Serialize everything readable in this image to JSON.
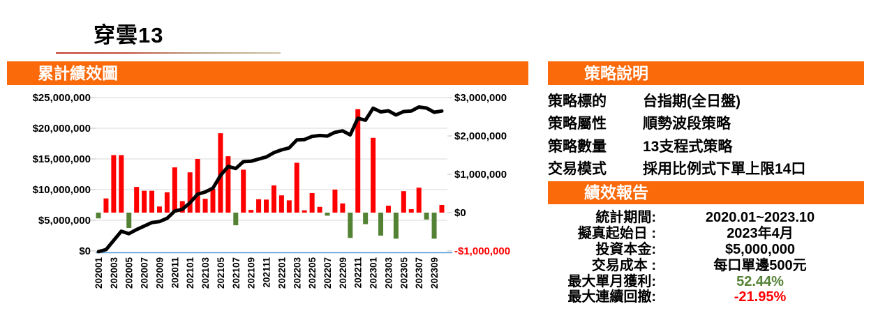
{
  "page": {
    "title": "穿雲13"
  },
  "colors": {
    "accent_orange": "#FA690A",
    "bar_positive_red": "#FF0000",
    "bar_negative_green": "#548235",
    "equity_line_black": "#000000",
    "x_axis_blue": "#5B9BD5",
    "gridline_gray": "#D9D9D9",
    "tick_gray": "#BFBFBF",
    "negative_label_red": "#FF0000",
    "positive_value_green": "#538135"
  },
  "left_panel": {
    "header": "累計績效圖"
  },
  "right_panel": {
    "strategy": {
      "header": "策略說明",
      "rows": [
        {
          "label": "策略標的",
          "value": "台指期(全日盤)"
        },
        {
          "label": "策略屬性",
          "value": "順勢波段策略"
        },
        {
          "label": "策略數量",
          "value": "13支程式策略"
        },
        {
          "label": "交易模式",
          "value": "採用比例式下單上限14口"
        }
      ]
    },
    "report": {
      "header": "績效報告",
      "rows": [
        {
          "label": "統計期間:",
          "value": "2020.01~2023.10",
          "value_color": "#000000"
        },
        {
          "label": "擬真起始日 :",
          "value": "2023年4月",
          "value_color": "#000000"
        },
        {
          "label": "投資本金:",
          "value": "$5,000,000",
          "value_color": "#000000"
        },
        {
          "label": "交易成本 :",
          "value": "每口單邊500元",
          "value_color": "#000000"
        },
        {
          "label": "最大單月獲利:",
          "value": "52.44%",
          "value_color": "#538135"
        },
        {
          "label": "最大連續回撤:",
          "value": "-21.95%",
          "value_color": "#FF0000"
        }
      ]
    }
  },
  "chart_data": {
    "type": "bar",
    "subtype": "monthly-pnl-bars-with-cumulative-line",
    "title": "累計績效圖",
    "n_months": 46,
    "x_start": "2020-01",
    "x_end": "2023-10",
    "x_tick_labels": [
      "202001",
      "202003",
      "202005",
      "202007",
      "202009",
      "202011",
      "202101",
      "202103",
      "202105",
      "202107",
      "202109",
      "202111",
      "202201",
      "202203",
      "202205",
      "202207",
      "202209",
      "202211",
      "202301",
      "202303",
      "202305",
      "202307",
      "202309"
    ],
    "series": [
      {
        "name": "monthly_pnl",
        "type": "bar",
        "axis": "right",
        "unit": "TWD_millions",
        "values": [
          -0.15,
          0.37,
          1.5,
          1.5,
          -0.4,
          0.67,
          0.57,
          0.57,
          0.16,
          0.53,
          1.18,
          0.3,
          1.05,
          1.4,
          0.36,
          0.62,
          2.07,
          1.47,
          -0.33,
          1.12,
          0.07,
          0.35,
          0.34,
          0.71,
          0.45,
          0.32,
          1.3,
          0.06,
          0.51,
          0.15,
          -0.08,
          0.6,
          0.24,
          -0.66,
          2.7,
          -0.3,
          1.95,
          -0.6,
          0.18,
          -0.68,
          0.56,
          0.09,
          0.65,
          -0.18,
          -0.68,
          0.2
        ]
      },
      {
        "name": "cumulative_equity",
        "type": "line",
        "axis": "left",
        "unit": "TWD_millions",
        "values": [
          -0.15,
          0.22,
          1.72,
          3.22,
          2.82,
          3.49,
          4.06,
          4.63,
          4.79,
          5.32,
          6.5,
          6.8,
          7.85,
          9.25,
          9.61,
          10.23,
          12.3,
          13.77,
          13.44,
          14.56,
          14.63,
          14.98,
          15.32,
          16.03,
          16.48,
          16.8,
          18.1,
          18.16,
          18.67,
          18.82,
          18.74,
          19.34,
          19.58,
          18.92,
          21.62,
          21.32,
          23.27,
          22.67,
          22.85,
          22.17,
          22.73,
          22.82,
          23.47,
          23.29,
          22.61,
          22.81
        ]
      }
    ],
    "left_axis": {
      "min": 0,
      "max": 25000000,
      "tick_labels": [
        "$0",
        "$5,000,000",
        "$10,000,000",
        "$15,000,000",
        "$20,000,000",
        "$25,000,000"
      ]
    },
    "right_axis": {
      "min": -1000000,
      "max": 3000000,
      "tick_labels": [
        "-$1,000,000",
        "$0",
        "$1,000,000",
        "$2,000,000",
        "$3,000,000"
      ]
    },
    "grid": "horizontal",
    "legend": "none"
  }
}
